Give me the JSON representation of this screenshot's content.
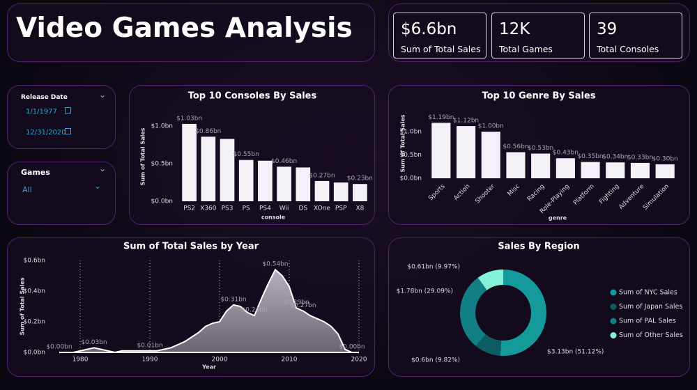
{
  "header": {
    "title": "Video Games Analysis"
  },
  "kpis": [
    {
      "value": "$6.6bn",
      "label": "Sum of Total Sales"
    },
    {
      "value": "12K",
      "label": "Total Games"
    },
    {
      "value": "39",
      "label": "Total Consoles"
    }
  ],
  "slicers": {
    "release_date": {
      "label": "Release Date",
      "start": "1/1/1977",
      "end": "12/31/2020"
    },
    "games": {
      "label": "Games",
      "selected": "All"
    }
  },
  "chart_data": [
    {
      "type": "bar",
      "title": "Top 10 Consoles By Sales",
      "x_label": "console",
      "y_label": "Sum of Total Sales",
      "categories": [
        "PS2",
        "X360",
        "PS3",
        "PS",
        "PS4",
        "Wii",
        "DS",
        "XOne",
        "PSP",
        "X8"
      ],
      "values": [
        1.03,
        0.86,
        0.83,
        0.55,
        0.54,
        0.46,
        0.45,
        0.27,
        0.25,
        0.23
      ],
      "value_labels": [
        "$1.03bn",
        "$0.86bn",
        null,
        "$0.55bn",
        null,
        "$0.46bn",
        null,
        "$0.27bn",
        null,
        "$0.23bn"
      ],
      "color": "#f4f0f8",
      "ylim": [
        0,
        1.15
      ],
      "yticks": [
        {
          "value": 0,
          "label": "$0.0bn"
        },
        {
          "value": 0.5,
          "label": "$0.5bn"
        },
        {
          "value": 1.0,
          "label": "$1.0bn"
        }
      ]
    },
    {
      "type": "bar",
      "title": "Top 10 Genre By Sales",
      "x_label": "genre",
      "y_label": "Sum of Total Sales",
      "categories": [
        "Sports",
        "Action",
        "Shooter",
        "Misc",
        "Racing",
        "Role-Playing",
        "Platform",
        "Fighting",
        "Adventure",
        "Simulation"
      ],
      "values": [
        1.19,
        1.12,
        1.0,
        0.56,
        0.53,
        0.43,
        0.35,
        0.34,
        0.33,
        0.3
      ],
      "value_labels": [
        "$1.19bn",
        "$1.12bn",
        "$1.00bn",
        "$0.56bn",
        "$0.53bn",
        "$0.43bn",
        "$0.35bn",
        "$0.34bn",
        "$0.33bn",
        "$0.30bn"
      ],
      "color": "#f4f0f8",
      "ylim": [
        0,
        1.3
      ],
      "yticks": [
        {
          "value": 0,
          "label": "$0.0bn"
        },
        {
          "value": 0.5,
          "label": "$0.5bn"
        },
        {
          "value": 1.0,
          "label": "$1.0bn"
        }
      ]
    },
    {
      "type": "area",
      "title": "Sum of Total Sales by Year",
      "x_label": "Year",
      "y_label": "Sum of Total Sales",
      "x": [
        1977,
        1978,
        1979,
        1980,
        1981,
        1982,
        1983,
        1984,
        1985,
        1986,
        1987,
        1988,
        1989,
        1990,
        1991,
        1992,
        1993,
        1994,
        1995,
        1996,
        1997,
        1998,
        1999,
        2000,
        2001,
        2002,
        2003,
        2004,
        2005,
        2006,
        2007,
        2008,
        2009,
        2010,
        2011,
        2012,
        2013,
        2014,
        2015,
        2016,
        2017,
        2018,
        2019,
        2020
      ],
      "values": [
        0,
        0,
        0,
        0.01,
        0.02,
        0.03,
        0.02,
        0.01,
        0.0,
        0.01,
        0.01,
        0.01,
        0.01,
        0.01,
        0.01,
        0.02,
        0.03,
        0.05,
        0.07,
        0.1,
        0.13,
        0.17,
        0.19,
        0.2,
        0.27,
        0.31,
        0.3,
        0.26,
        0.24,
        0.35,
        0.45,
        0.54,
        0.5,
        0.43,
        0.29,
        0.27,
        0.24,
        0.22,
        0.2,
        0.17,
        0.12,
        0.02,
        0.0,
        0.0
      ],
      "value_labels": [
        "$0.00bn",
        null,
        null,
        null,
        null,
        "$0.03bn",
        null,
        null,
        null,
        null,
        null,
        null,
        null,
        "$0.01bn",
        null,
        null,
        null,
        null,
        null,
        null,
        null,
        null,
        null,
        null,
        null,
        "$0.31bn",
        null,
        null,
        "$0.24bn",
        null,
        null,
        "$0.54bn",
        null,
        null,
        "$0.29bn",
        "$0.27bn",
        null,
        null,
        null,
        null,
        null,
        null,
        "$0.00bn",
        null
      ],
      "color": "#8c8692",
      "xlim": [
        1976,
        2021
      ],
      "ylim": [
        0,
        0.6
      ],
      "xticks": [
        1980,
        1990,
        2000,
        2010,
        2020
      ],
      "grid": true,
      "yticks": [
        {
          "value": 0,
          "label": "$0.0bn"
        },
        {
          "value": 0.2,
          "label": "$0.2bn"
        },
        {
          "value": 0.4,
          "label": "$0.4bn"
        },
        {
          "value": 0.6,
          "label": "$0.6bn"
        }
      ]
    },
    {
      "type": "pie",
      "title": "Sales By Region",
      "categories": [
        "Sum of NYC Sales",
        "Sum of Japan Sales",
        "Sum of PAL Sales",
        "Sum of Other Sales"
      ],
      "values": [
        3.13,
        0.6,
        1.78,
        0.61
      ],
      "value_labels": [
        "$3.13bn (51.12%)",
        "$0.6bn (9.82%)",
        "$1.78bn (29.09%)",
        "$0.61bn (9.97%)"
      ],
      "colors": [
        "#159a9c",
        "#0d5c63",
        "#127f86",
        "#84f2d6"
      ],
      "legend": "right"
    }
  ]
}
